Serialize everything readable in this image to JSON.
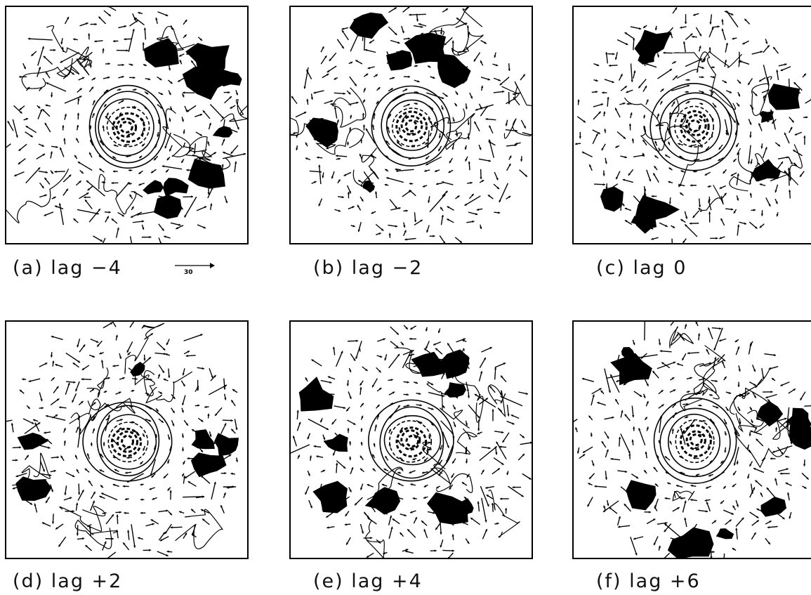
{
  "panels": [
    {
      "id": "a",
      "label": "(a) lag −4"
    },
    {
      "id": "b",
      "label": "(b) lag −2"
    },
    {
      "id": "c",
      "label": "(c) lag 0"
    },
    {
      "id": "d",
      "label": "(d) lag +2"
    },
    {
      "id": "e",
      "label": "(e) lag +4"
    },
    {
      "id": "f",
      "label": "(f) lag +6"
    }
  ],
  "reference_vector": {
    "label": "30"
  },
  "colors": {
    "ink": "#000000",
    "background": "#ffffff"
  }
}
